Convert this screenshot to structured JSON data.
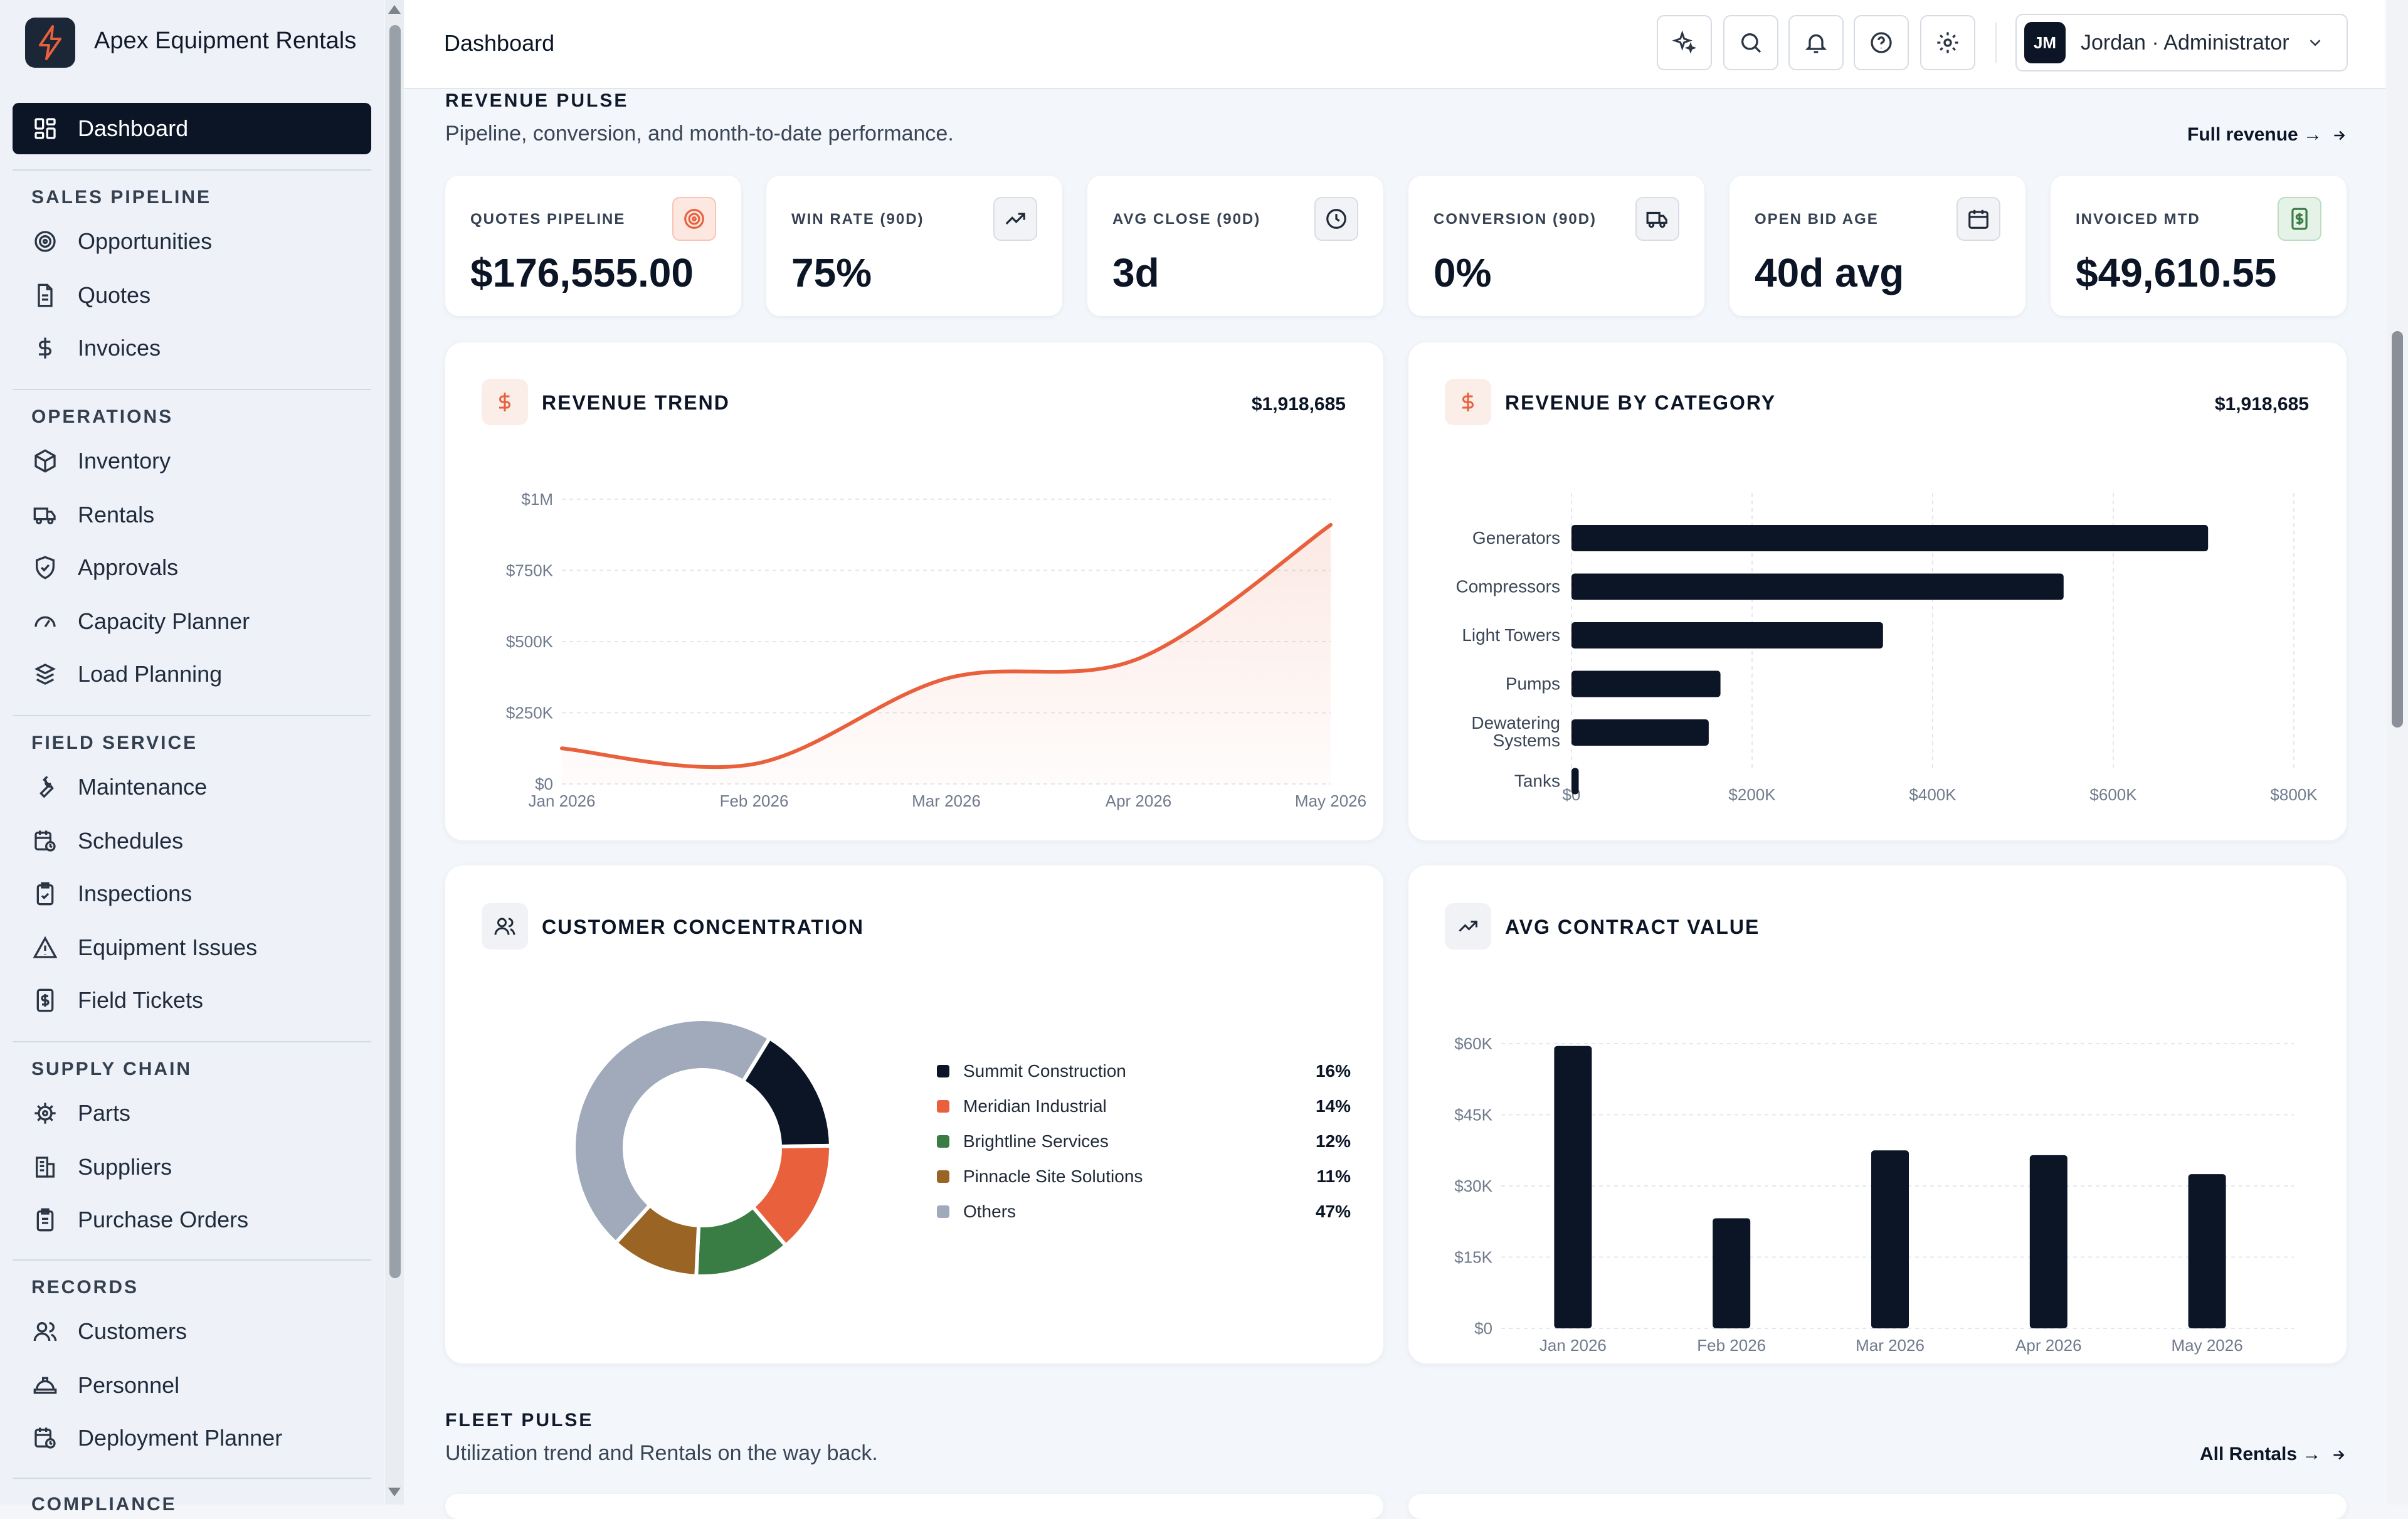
{
  "app": {
    "name": "Apex Equipment Rentals"
  },
  "sidebar": {
    "dashboard": "Dashboard",
    "sections": [
      {
        "title": "SALES PIPELINE",
        "items": [
          "Opportunities",
          "Quotes",
          "Invoices"
        ]
      },
      {
        "title": "OPERATIONS",
        "items": [
          "Inventory",
          "Rentals",
          "Approvals",
          "Capacity Planner",
          "Load Planning"
        ]
      },
      {
        "title": "FIELD SERVICE",
        "items": [
          "Maintenance",
          "Schedules",
          "Inspections",
          "Equipment Issues",
          "Field Tickets"
        ]
      },
      {
        "title": "SUPPLY CHAIN",
        "items": [
          "Parts",
          "Suppliers",
          "Purchase Orders"
        ]
      },
      {
        "title": "RECORDS",
        "items": [
          "Customers",
          "Personnel",
          "Deployment Planner"
        ]
      },
      {
        "title": "COMPLIANCE",
        "items": []
      }
    ]
  },
  "header": {
    "title": "Dashboard",
    "user": "Jordan · Administrator",
    "initials": "JM"
  },
  "revenue_pulse": {
    "title": "REVENUE PULSE",
    "subtitle": "Pipeline, conversion, and month-to-date performance.",
    "link": "Full revenue →"
  },
  "kpis": [
    {
      "label": "QUOTES PIPELINE",
      "value": "$176,555.00",
      "icon": "target-icon"
    },
    {
      "label": "WIN RATE (90D)",
      "value": "75%",
      "icon": "trending-up-icon"
    },
    {
      "label": "AVG CLOSE (90D)",
      "value": "3d",
      "icon": "clock-icon"
    },
    {
      "label": "CONVERSION (90D)",
      "value": "0%",
      "icon": "truck-icon"
    },
    {
      "label": "OPEN BID AGE",
      "value": "40d avg",
      "icon": "calendar-icon"
    },
    {
      "label": "INVOICED MTD",
      "value": "$49,610.55",
      "icon": "receipt-icon"
    }
  ],
  "cards": {
    "revenue_trend": {
      "title": "REVENUE TREND",
      "total": "$1,918,685"
    },
    "revenue_by_category": {
      "title": "REVENUE BY CATEGORY",
      "total": "$1,918,685"
    },
    "customer_concentration": {
      "title": "CUSTOMER CONCENTRATION"
    },
    "avg_contract_value": {
      "title": "AVG CONTRACT VALUE"
    }
  },
  "fleet_pulse": {
    "title": "FLEET PULSE",
    "subtitle": "Utilization trend and Rentals on the way back.",
    "link": "All Rentals →"
  },
  "colors": {
    "accent": "#e8603c",
    "navy": "#0b1526",
    "green": "#3a7d44",
    "brown": "#9a6424",
    "gray": "#a0aabb"
  },
  "chart_data": [
    {
      "type": "area",
      "title": "REVENUE TREND",
      "x": [
        "Jan 2026",
        "Feb 2026",
        "Mar 2026",
        "Apr 2026",
        "May 2026"
      ],
      "values": [
        125000,
        70000,
        370000,
        440000,
        910000
      ],
      "y_ticks": [
        "$0",
        "$250K",
        "$500K",
        "$750K",
        "$1M"
      ],
      "ylim": [
        0,
        1000000
      ],
      "grid": true
    },
    {
      "type": "bar",
      "orientation": "horizontal",
      "title": "REVENUE BY CATEGORY",
      "categories": [
        "Generators",
        "Compressors",
        "Light Towers",
        "Pumps",
        "Dewatering Systems",
        "Tanks"
      ],
      "values": [
        705000,
        545000,
        345000,
        165000,
        152000,
        8000
      ],
      "x_ticks": [
        "$0",
        "$200K",
        "$400K",
        "$600K",
        "$800K"
      ],
      "xlim": [
        0,
        800000
      ],
      "grid": true
    },
    {
      "type": "pie",
      "title": "CUSTOMER CONCENTRATION",
      "slices": [
        {
          "name": "Summit Construction",
          "pct": 16,
          "label": "16%",
          "color": "#0b1526"
        },
        {
          "name": "Meridian Industrial",
          "pct": 14,
          "label": "14%",
          "color": "#e8603c"
        },
        {
          "name": "Brightline Services",
          "pct": 12,
          "label": "12%",
          "color": "#3a7d44"
        },
        {
          "name": "Pinnacle Site Solutions",
          "pct": 11,
          "label": "11%",
          "color": "#9a6424"
        },
        {
          "name": "Others",
          "pct": 47,
          "label": "47%",
          "color": "#a0aabb"
        }
      ],
      "legend": "right"
    },
    {
      "type": "bar",
      "title": "AVG CONTRACT VALUE",
      "categories": [
        "Jan 2026",
        "Feb 2026",
        "Mar 2026",
        "Apr 2026",
        "May 2026"
      ],
      "values": [
        59500,
        23200,
        37500,
        36500,
        32500
      ],
      "y_ticks": [
        "$0",
        "$15K",
        "$30K",
        "$45K",
        "$60K"
      ],
      "ylim": [
        0,
        60000
      ],
      "grid": true
    }
  ]
}
